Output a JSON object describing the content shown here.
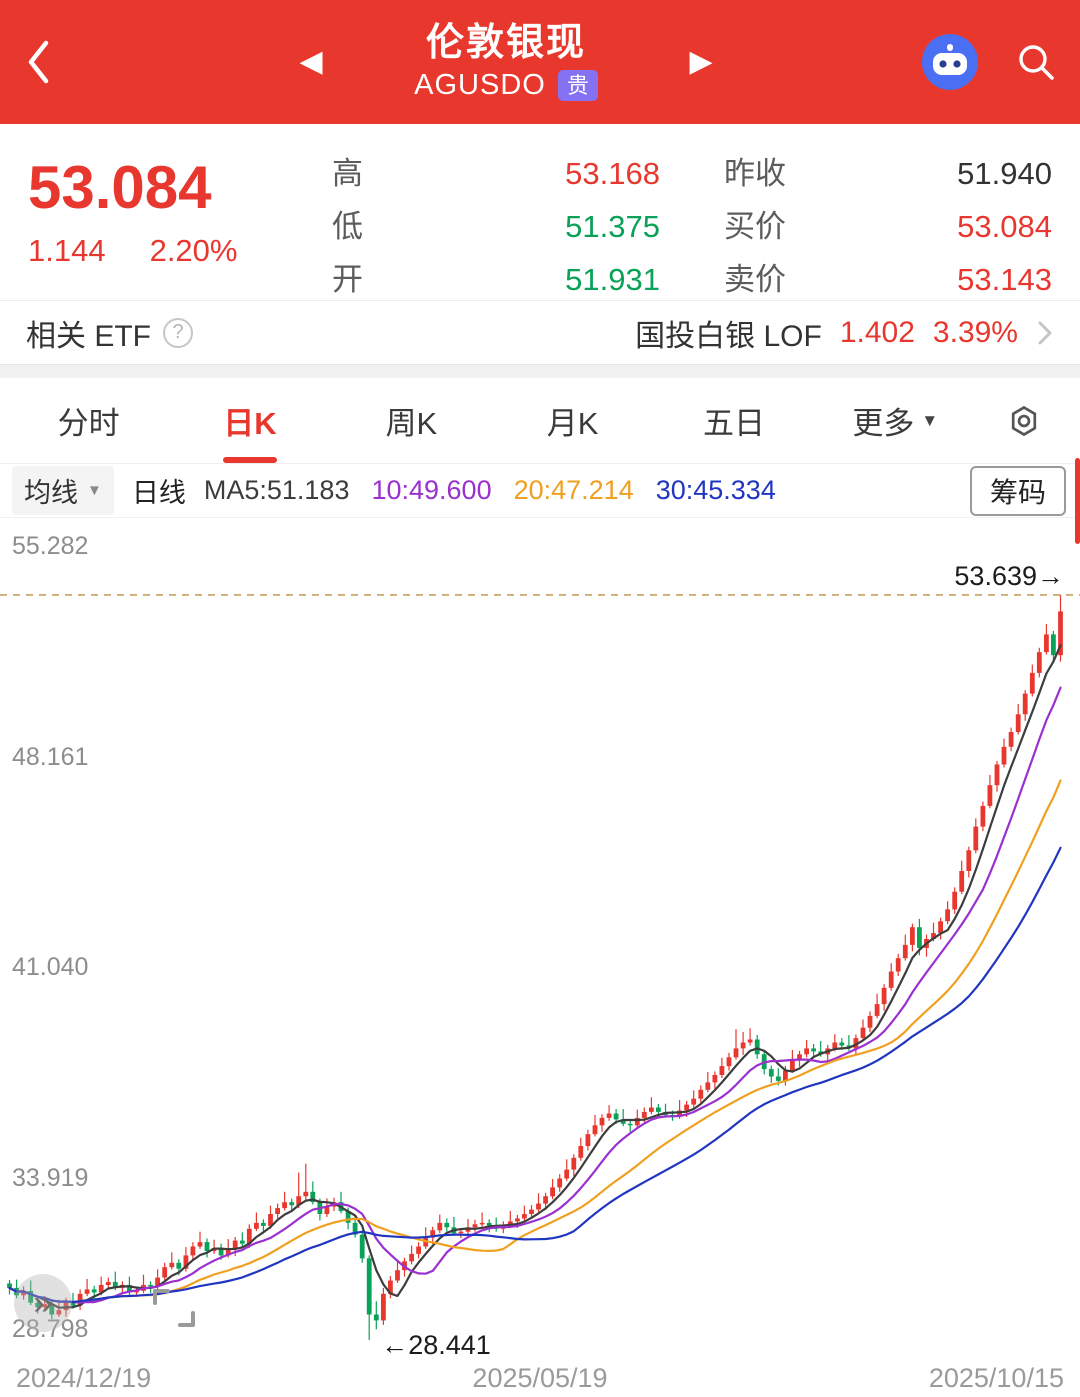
{
  "header": {
    "title": "伦敦银现",
    "subtitle": "AGUSDO",
    "badge": "贵"
  },
  "quote": {
    "price": "53.084",
    "change": "1.144",
    "change_pct": "2.20%",
    "fields_mid": [
      {
        "label": "高",
        "value": "53.168",
        "color": "#e8372f"
      },
      {
        "label": "低",
        "value": "51.375",
        "color": "#0aa158"
      },
      {
        "label": "开",
        "value": "51.931",
        "color": "#0aa158"
      }
    ],
    "fields_right": [
      {
        "label": "昨收",
        "value": "51.940",
        "color": "#333333"
      },
      {
        "label": "买价",
        "value": "53.084",
        "color": "#e8372f"
      },
      {
        "label": "卖价",
        "value": "53.143",
        "color": "#e8372f"
      }
    ]
  },
  "etf": {
    "label": "相关 ETF",
    "help": "?",
    "name": "国投白银 LOF",
    "value": "1.402",
    "pct": "3.39%"
  },
  "tabs": [
    {
      "label": "分时"
    },
    {
      "label": "日K"
    },
    {
      "label": "周K"
    },
    {
      "label": "月K"
    },
    {
      "label": "五日"
    },
    {
      "label": "更多"
    }
  ],
  "ma_bar": {
    "dropdown": "均线",
    "mode": "日线",
    "ma5_label": "MA5:51.183",
    "ma10_label": "10:49.600",
    "ma20_label": "20:47.214",
    "ma30_label": "30:45.334",
    "chips_button": "筹码"
  },
  "colors": {
    "accent": "#e8382e",
    "up": "#e8372f",
    "down": "#0aa158",
    "text_dark": "#333333",
    "badge_bg": "#8572f2",
    "ma5": "#3d3d3d",
    "ma10": "#9b2fd0",
    "ma20": "#f0a020",
    "ma30": "#2036c0",
    "high_line": "#c9a05c"
  },
  "chart_data": {
    "type": "candlestick",
    "title": "伦敦银现 AGUSDO 日K",
    "x_labels": [
      "2024/12/19",
      "2025/05/19",
      "2025/10/15"
    ],
    "y_ticks": [
      55.282,
      48.161,
      41.04,
      33.919,
      28.798
    ],
    "ylim": [
      28.1,
      55.9
    ],
    "high_marker": {
      "value": 53.639,
      "label": "53.639→"
    },
    "low_marker": {
      "value": 28.441,
      "label": "←28.441"
    },
    "ma_periods": [
      5,
      10,
      20,
      30
    ],
    "legend": [
      "MA5",
      "MA10",
      "MA20",
      "MA30"
    ],
    "candles": [
      [
        30.35,
        30.47,
        29.98,
        30.2
      ],
      [
        30.2,
        30.48,
        29.85,
        29.95
      ],
      [
        29.95,
        30.25,
        29.8,
        30.1
      ],
      [
        30.1,
        30.45,
        29.62,
        29.7
      ],
      [
        29.7,
        29.82,
        29.33,
        29.55
      ],
      [
        29.55,
        29.93,
        29.45,
        29.65
      ],
      [
        29.65,
        29.8,
        29.15,
        29.3
      ],
      [
        29.3,
        29.8,
        29.22,
        29.45
      ],
      [
        29.45,
        29.87,
        29.23,
        29.75
      ],
      [
        29.75,
        30.03,
        29.5,
        29.6
      ],
      [
        29.6,
        30.15,
        29.45,
        30.0
      ],
      [
        30.0,
        30.5,
        29.92,
        30.15
      ],
      [
        30.15,
        30.27,
        29.83,
        30.05
      ],
      [
        30.05,
        30.58,
        29.95,
        30.3
      ],
      [
        30.3,
        30.55,
        30.15,
        30.4
      ],
      [
        30.4,
        30.75,
        30.12,
        30.2
      ],
      [
        30.2,
        30.42,
        29.98,
        30.3
      ],
      [
        30.3,
        30.58,
        29.95,
        30.05
      ],
      [
        30.05,
        30.25,
        29.9,
        30.1
      ],
      [
        30.1,
        30.65,
        30.02,
        30.3
      ],
      [
        30.3,
        30.42,
        30.03,
        30.25
      ],
      [
        30.25,
        30.83,
        30.15,
        30.55
      ],
      [
        30.55,
        31.05,
        30.4,
        30.9
      ],
      [
        30.9,
        31.4,
        30.82,
        31.05
      ],
      [
        31.05,
        31.17,
        30.63,
        30.85
      ],
      [
        30.85,
        31.58,
        30.75,
        31.3
      ],
      [
        31.3,
        31.75,
        31.15,
        31.6
      ],
      [
        31.6,
        32.1,
        31.52,
        31.75
      ],
      [
        31.75,
        31.87,
        31.23,
        31.45
      ],
      [
        31.45,
        31.83,
        31.35,
        31.55
      ],
      [
        31.55,
        31.7,
        31.15,
        31.3
      ],
      [
        31.3,
        31.85,
        31.22,
        31.5
      ],
      [
        31.5,
        31.92,
        31.28,
        31.8
      ],
      [
        31.8,
        32.08,
        31.6,
        31.7
      ],
      [
        31.7,
        32.35,
        31.55,
        32.2
      ],
      [
        32.2,
        32.75,
        32.12,
        32.4
      ],
      [
        32.4,
        32.52,
        32.08,
        32.3
      ],
      [
        32.3,
        32.98,
        32.2,
        32.7
      ],
      [
        32.7,
        33.05,
        32.55,
        32.9
      ],
      [
        32.9,
        33.45,
        32.82,
        33.1
      ],
      [
        33.1,
        33.22,
        32.78,
        33.0
      ],
      [
        33.0,
        34.1,
        32.9,
        33.3
      ],
      [
        33.3,
        34.4,
        33.15,
        33.45
      ],
      [
        33.45,
        33.8,
        33.02,
        33.1
      ],
      [
        33.1,
        33.22,
        32.48,
        32.7
      ],
      [
        32.7,
        33.23,
        32.6,
        32.95
      ],
      [
        32.95,
        33.25,
        32.8,
        33.1
      ],
      [
        33.1,
        33.45,
        32.72,
        32.8
      ],
      [
        32.8,
        32.92,
        32.18,
        32.4
      ],
      [
        32.4,
        32.68,
        31.9,
        32.0
      ],
      [
        32.0,
        32.15,
        31.05,
        31.2
      ],
      [
        31.2,
        31.3,
        28.44,
        29.3
      ],
      [
        29.3,
        29.75,
        28.8,
        29.1
      ],
      [
        29.1,
        30.2,
        28.95,
        30.0
      ],
      [
        30.0,
        30.6,
        29.85,
        30.45
      ],
      [
        30.45,
        31.15,
        30.37,
        30.8
      ],
      [
        30.8,
        31.22,
        30.58,
        31.1
      ],
      [
        31.1,
        31.63,
        31.0,
        31.35
      ],
      [
        31.35,
        31.75,
        31.2,
        31.6
      ],
      [
        31.6,
        32.25,
        31.52,
        31.9
      ],
      [
        31.9,
        32.27,
        31.68,
        32.15
      ],
      [
        32.15,
        32.68,
        32.05,
        32.4
      ],
      [
        32.4,
        32.55,
        32.1,
        32.25
      ],
      [
        32.25,
        32.6,
        31.97,
        32.05
      ],
      [
        32.05,
        32.22,
        31.88,
        32.1
      ],
      [
        32.1,
        32.53,
        32.0,
        32.25
      ],
      [
        32.25,
        32.5,
        32.1,
        32.35
      ],
      [
        32.35,
        32.75,
        32.27,
        32.4
      ],
      [
        32.4,
        32.52,
        32.08,
        32.3
      ],
      [
        32.3,
        32.58,
        32.1,
        32.2
      ],
      [
        32.2,
        32.45,
        32.05,
        32.3
      ],
      [
        32.3,
        32.8,
        32.22,
        32.45
      ],
      [
        32.45,
        32.67,
        32.23,
        32.55
      ],
      [
        32.55,
        32.98,
        32.45,
        32.7
      ],
      [
        32.7,
        33.0,
        32.55,
        32.85
      ],
      [
        32.85,
        33.4,
        32.77,
        33.05
      ],
      [
        33.05,
        33.42,
        32.83,
        33.3
      ],
      [
        33.3,
        33.88,
        33.2,
        33.6
      ],
      [
        33.6,
        34.05,
        33.45,
        33.9
      ],
      [
        33.9,
        34.55,
        33.82,
        34.2
      ],
      [
        34.2,
        34.72,
        33.98,
        34.6
      ],
      [
        34.6,
        35.28,
        34.5,
        35.0
      ],
      [
        35.0,
        35.55,
        34.85,
        35.4
      ],
      [
        35.4,
        36.05,
        35.32,
        35.7
      ],
      [
        35.7,
        36.07,
        35.48,
        35.95
      ],
      [
        35.95,
        36.38,
        35.85,
        36.1
      ],
      [
        36.1,
        36.25,
        35.75,
        35.9
      ],
      [
        35.9,
        36.25,
        35.67,
        35.75
      ],
      [
        35.75,
        35.87,
        35.48,
        35.7
      ],
      [
        35.7,
        36.23,
        35.6,
        35.95
      ],
      [
        35.95,
        36.3,
        35.8,
        36.15
      ],
      [
        36.15,
        36.65,
        36.07,
        36.3
      ],
      [
        36.3,
        36.42,
        35.93,
        36.15
      ],
      [
        36.15,
        36.43,
        35.95,
        36.05
      ],
      [
        36.05,
        36.2,
        35.85,
        36.0
      ],
      [
        36.0,
        36.55,
        35.92,
        36.2
      ],
      [
        36.2,
        36.52,
        35.98,
        36.4
      ],
      [
        36.4,
        36.88,
        36.3,
        36.6
      ],
      [
        36.6,
        37.05,
        36.45,
        36.9
      ],
      [
        36.9,
        37.5,
        36.82,
        37.15
      ],
      [
        37.15,
        37.52,
        36.93,
        37.4
      ],
      [
        37.4,
        37.98,
        37.3,
        37.7
      ],
      [
        37.7,
        38.15,
        37.55,
        38.0
      ],
      [
        38.0,
        38.95,
        37.92,
        38.3
      ],
      [
        38.3,
        38.85,
        38.08,
        38.5
      ],
      [
        38.5,
        38.98,
        38.4,
        38.6
      ],
      [
        38.6,
        38.75,
        37.95,
        38.1
      ],
      [
        38.1,
        38.2,
        37.42,
        37.6
      ],
      [
        37.6,
        37.72,
        37.13,
        37.35
      ],
      [
        37.35,
        37.63,
        37.05,
        37.2
      ],
      [
        37.2,
        37.7,
        37.05,
        37.55
      ],
      [
        37.55,
        38.25,
        37.47,
        37.9
      ],
      [
        37.9,
        38.22,
        37.68,
        38.1
      ],
      [
        38.1,
        38.58,
        38.0,
        38.3
      ],
      [
        38.3,
        38.45,
        38.05,
        38.2
      ],
      [
        38.2,
        38.55,
        38.02,
        38.1
      ],
      [
        38.1,
        38.42,
        37.88,
        38.3
      ],
      [
        38.3,
        38.78,
        38.2,
        38.5
      ],
      [
        38.5,
        38.65,
        38.25,
        38.4
      ],
      [
        38.4,
        38.75,
        38.22,
        38.3
      ],
      [
        38.3,
        38.77,
        38.08,
        38.65
      ],
      [
        38.65,
        39.28,
        38.55,
        39.0
      ],
      [
        39.0,
        39.55,
        38.85,
        39.4
      ],
      [
        39.4,
        40.15,
        39.32,
        39.8
      ],
      [
        39.8,
        40.47,
        39.58,
        40.35
      ],
      [
        40.35,
        41.18,
        40.25,
        40.9
      ],
      [
        40.9,
        41.5,
        40.75,
        41.35
      ],
      [
        41.35,
        42.15,
        41.27,
        41.8
      ],
      [
        41.8,
        42.52,
        41.58,
        42.4
      ],
      [
        42.4,
        42.68,
        41.45,
        41.7
      ],
      [
        41.7,
        42.15,
        41.4,
        42.0
      ],
      [
        42.0,
        42.55,
        41.92,
        42.2
      ],
      [
        42.2,
        42.72,
        41.98,
        42.6
      ],
      [
        42.6,
        43.28,
        42.5,
        43.0
      ],
      [
        43.0,
        43.75,
        42.85,
        43.6
      ],
      [
        43.6,
        44.65,
        43.52,
        44.3
      ],
      [
        44.3,
        45.12,
        44.08,
        45.0
      ],
      [
        45.0,
        46.08,
        44.9,
        45.8
      ],
      [
        45.8,
        46.65,
        45.65,
        46.5
      ],
      [
        46.5,
        47.55,
        46.42,
        47.2
      ],
      [
        47.2,
        48.02,
        46.98,
        47.9
      ],
      [
        47.9,
        48.78,
        47.8,
        48.5
      ],
      [
        48.5,
        49.15,
        48.35,
        49.0
      ],
      [
        49.0,
        49.95,
        48.92,
        49.6
      ],
      [
        49.6,
        50.42,
        49.38,
        50.3
      ],
      [
        50.3,
        51.28,
        50.2,
        51.0
      ],
      [
        51.0,
        51.85,
        50.85,
        51.7
      ],
      [
        51.7,
        52.65,
        51.62,
        52.3
      ],
      [
        52.3,
        52.42,
        51.38,
        51.6
      ],
      [
        51.6,
        53.64,
        51.38,
        53.08
      ]
    ]
  }
}
